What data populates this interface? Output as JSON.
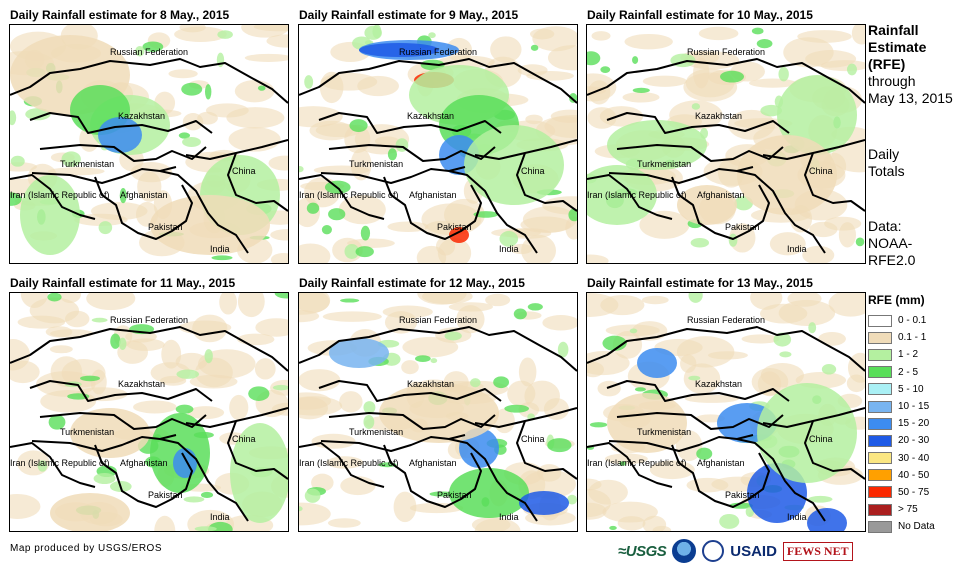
{
  "panels": [
    {
      "title": "Daily Rainfall estimate for 8 May., 2015",
      "date": "8 May 2015"
    },
    {
      "title": "Daily Rainfall estimate for 9 May., 2015",
      "date": "9 May 2015"
    },
    {
      "title": "Daily Rainfall estimate for 10 May., 2015",
      "date": "10 May 2015"
    },
    {
      "title": "Daily Rainfall estimate for 11 May., 2015",
      "date": "11 May 2015"
    },
    {
      "title": "Daily Rainfall estimate for 12 May., 2015",
      "date": "12 May 2015"
    },
    {
      "title": "Daily Rainfall estimate for 13 May., 2015",
      "date": "13 May 2015"
    }
  ],
  "map_labels": {
    "russia": "Russian Federation",
    "kazakhstan": "Kazakhstan",
    "turkmenistan": "Turkmenistan",
    "china": "China",
    "iran": "Iran (Islamic Republic of)",
    "afghanistan": "Afghanistan",
    "pakistan": "Pakistan",
    "india": "India"
  },
  "side_info": {
    "title_line1": "Rainfall",
    "title_line2": "Estimate",
    "title_line3": "(RFE)",
    "through_line1": "through",
    "through_line2": "May 13, 2015",
    "totals_line1": "Daily",
    "totals_line2": "Totals",
    "data_line1": "Data:",
    "data_line2": "NOAA-",
    "data_line3": "RFE2.0"
  },
  "legend": {
    "title": "RFE (mm)",
    "items": [
      {
        "label": "0 - 0.1",
        "color": "#ffffff"
      },
      {
        "label": "0.1 - 1",
        "color": "#f0dcb9"
      },
      {
        "label": "1 - 2",
        "color": "#b4f0a0"
      },
      {
        "label": "2 - 5",
        "color": "#5ade5a"
      },
      {
        "label": "5 - 10",
        "color": "#aaf0f5"
      },
      {
        "label": "10 - 15",
        "color": "#78b4f0"
      },
      {
        "label": "15 - 20",
        "color": "#3c8cf0"
      },
      {
        "label": "20 - 30",
        "color": "#1e5ae6"
      },
      {
        "label": "30 - 40",
        "color": "#fae682"
      },
      {
        "label": "40 - 50",
        "color": "#ffa000"
      },
      {
        "label": "50 - 75",
        "color": "#fa2800"
      },
      {
        "label": "> 75",
        "color": "#aa1e1e"
      },
      {
        "label": "No Data",
        "color": "#999999"
      }
    ]
  },
  "footer": {
    "credit": "Map produced by USGS/EROS",
    "logo_usgs": "≈USGS",
    "logo_usaid": "USAID",
    "logo_fews": "FEWS NET"
  }
}
